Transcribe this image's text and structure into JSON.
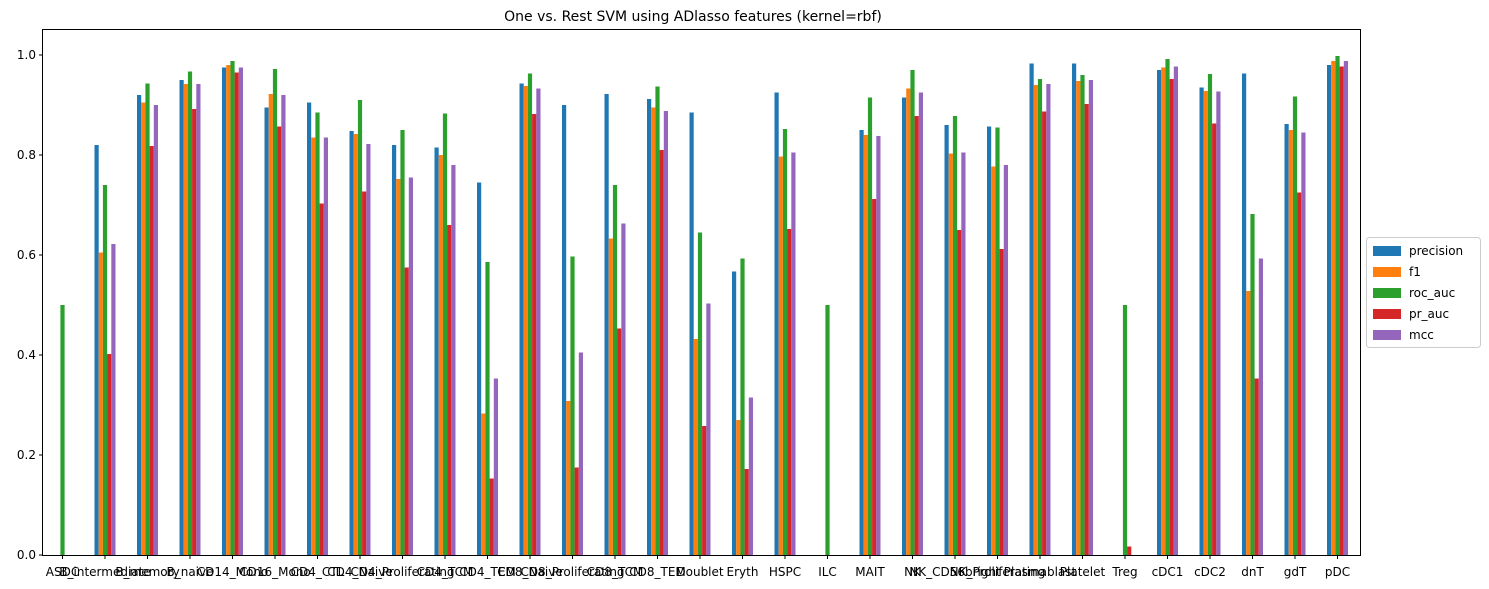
{
  "chart_data": {
    "type": "bar",
    "title": "One vs. Rest SVM using ADlasso features (kernel=rbf)",
    "xlabel": "",
    "ylabel": "",
    "ylim": [
      0,
      1.05
    ],
    "yticks": [
      "0.0",
      "0.2",
      "0.4",
      "0.6",
      "0.8",
      "1.0"
    ],
    "legend_position": "center-right",
    "categories": [
      "ASDC",
      "B_intermediate",
      "B_memory",
      "B_naive",
      "CD14_Mono",
      "CD16_Mono",
      "CD4_CTL",
      "CD4_Naive",
      "CD4_Proliferating",
      "CD4_TCM",
      "CD4_TEM",
      "CD8_Naive",
      "CD8_Proliferating",
      "CD8_TCM",
      "CD8_TEM",
      "Doublet",
      "Eryth",
      "HSPC",
      "ILC",
      "MAIT",
      "NK",
      "NK_CD56bright",
      "NK_Proliferating",
      "Plasmablast",
      "Platelet",
      "Treg",
      "cDC1",
      "cDC2",
      "dnT",
      "gdT",
      "pDC"
    ],
    "series": [
      {
        "name": "precision",
        "color": "#1f77b4",
        "values": [
          0,
          0.82,
          0.92,
          0.95,
          0.975,
          0.895,
          0.905,
          0.848,
          0.82,
          0.815,
          0.745,
          0.943,
          0.9,
          0.922,
          0.912,
          0.885,
          0.567,
          0.925,
          0,
          0.85,
          0.915,
          0.86,
          0.857,
          0.983,
          0.983,
          0,
          0.97,
          0.935,
          0.963,
          0.862,
          0.98
        ]
      },
      {
        "name": "f1",
        "color": "#ff7f0e",
        "values": [
          0,
          0.605,
          0.905,
          0.942,
          0.98,
          0.922,
          0.835,
          0.842,
          0.752,
          0.8,
          0.283,
          0.938,
          0.308,
          0.633,
          0.895,
          0.432,
          0.27,
          0.797,
          0,
          0.84,
          0.933,
          0.803,
          0.777,
          0.94,
          0.948,
          0,
          0.975,
          0.928,
          0.528,
          0.85,
          0.988
        ]
      },
      {
        "name": "roc_auc",
        "color": "#2ca02c",
        "values": [
          0.5,
          0.74,
          0.943,
          0.967,
          0.988,
          0.972,
          0.885,
          0.91,
          0.85,
          0.883,
          0.586,
          0.963,
          0.597,
          0.74,
          0.937,
          0.645,
          0.593,
          0.852,
          0.5,
          0.915,
          0.97,
          0.878,
          0.855,
          0.952,
          0.96,
          0.5,
          0.992,
          0.962,
          0.682,
          0.917,
          0.998
        ]
      },
      {
        "name": "pr_auc",
        "color": "#d62728",
        "values": [
          0,
          0.402,
          0.818,
          0.892,
          0.965,
          0.857,
          0.703,
          0.727,
          0.575,
          0.66,
          0.153,
          0.882,
          0.175,
          0.453,
          0.81,
          0.258,
          0.172,
          0.652,
          0,
          0.712,
          0.878,
          0.65,
          0.612,
          0.887,
          0.902,
          0.017,
          0.952,
          0.863,
          0.353,
          0.725,
          0.977
        ]
      },
      {
        "name": "mcc",
        "color": "#9467bd",
        "values": [
          0,
          0.622,
          0.9,
          0.942,
          0.975,
          0.92,
          0.835,
          0.822,
          0.755,
          0.78,
          0.353,
          0.933,
          0.405,
          0.663,
          0.888,
          0.503,
          0.315,
          0.805,
          0,
          0.838,
          0.925,
          0.805,
          0.78,
          0.942,
          0.95,
          0,
          0.977,
          0.927,
          0.593,
          0.845,
          0.988
        ]
      }
    ]
  }
}
